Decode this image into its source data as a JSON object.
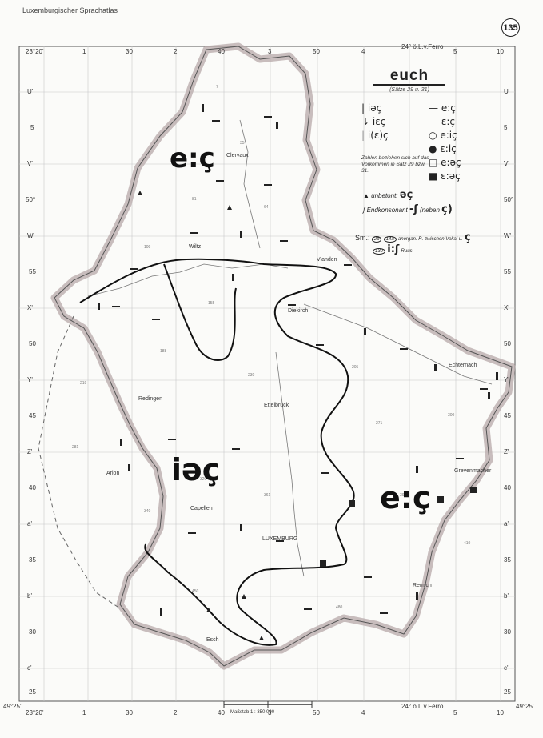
{
  "header": {
    "atlas_title": "Luxemburgischer Sprachatlas",
    "page_number": "135"
  },
  "legend": {
    "title": "euch",
    "subtitle": "(Sätze 29 u. 31)",
    "left_entries": [
      {
        "symbol": "|",
        "text": "iəç"
      },
      {
        "symbol": "⇂",
        "text": "iɛç"
      },
      {
        "symbol": "|",
        "text": "i(ɛ)ç"
      }
    ],
    "right_entries": [
      {
        "symbol": "—",
        "text": "e:ç"
      },
      {
        "symbol": "—",
        "text": "ɛ:ç"
      },
      {
        "symbol": "○",
        "text": "e:iç"
      },
      {
        "symbol": "●",
        "text": "ɛ:iç"
      },
      {
        "symbol": "□",
        "text": "e:əç"
      },
      {
        "symbol": "■",
        "text": "ɛ:əç"
      }
    ],
    "note": "Zahlen beziehen sich auf das Vorkommen in Satz 29 bzw. 31.",
    "unbetont": {
      "symbol": "▲",
      "label": "unbetont:",
      "value": "əç"
    },
    "endkonsonant": {
      "symbol": "ʃ",
      "label": "Endkonsonant",
      "value": "-ʃ",
      "neben": "(neben",
      "neben_value": "ç)"
    },
    "sm_label": "Sm.:",
    "sm_note": "anorgan. R. zwischen Vokal u.",
    "sm_note_value": "ç",
    "sm_codes": [
      "2b",
      "14a",
      "130"
    ],
    "ius": "i:ʃ",
    "ius_note": "Ruus"
  },
  "map": {
    "region_labels": [
      {
        "id": "north",
        "text": "e:ç"
      },
      {
        "id": "center",
        "text": "iəç"
      },
      {
        "id": "east",
        "text": "e:ç"
      }
    ],
    "places": [
      "Clervaux",
      "Wiltz",
      "Vianden",
      "Diekirch",
      "Redingen",
      "Ettelbrück",
      "Echternach",
      "Arlon",
      "Grevenmacher",
      "Capellen",
      "LUXEMBURG",
      "Remich",
      "Esch"
    ],
    "top_coords": [
      "23°20'",
      "1",
      "30",
      "2",
      "40",
      "3",
      "50",
      "4",
      "24° ö.L.v.Ferro",
      "5",
      "10"
    ],
    "bottom_coords": [
      "49°25'",
      "23°20'",
      "1",
      "30",
      "2",
      "40",
      "3",
      "50",
      "4",
      "24° ö.L.v.Ferro",
      "5",
      "10",
      "49°25'"
    ],
    "left_rows": [
      "U'",
      "5",
      "V'",
      "50°",
      "W'",
      "55",
      "X'",
      "50",
      "Y'",
      "45",
      "Z'",
      "40",
      "a'",
      "35",
      "b'",
      "30",
      "c'",
      "25"
    ],
    "right_rows": [
      "U'",
      "5",
      "V'",
      "50°",
      "W'",
      "55",
      "X'",
      "50",
      "Y'",
      "45",
      "Z'",
      "40",
      "a'",
      "35",
      "b'",
      "30",
      "c'",
      "25"
    ],
    "scale": "Maßstab 1 : 350 000"
  }
}
